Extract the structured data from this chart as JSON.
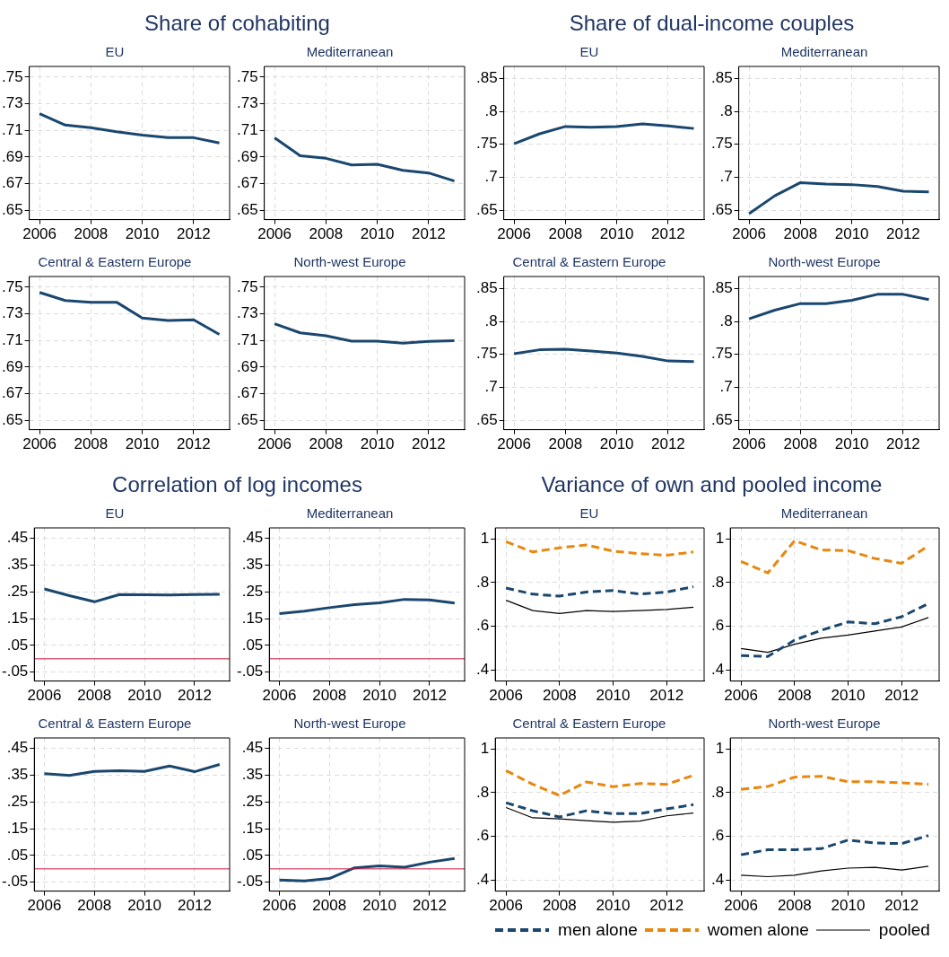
{
  "chart_data": [
    {
      "type": "line",
      "title": "Share of cohabiting",
      "subtitle": "EU",
      "x": [
        2006,
        2007,
        2008,
        2009,
        2010,
        2011,
        2012,
        2013
      ],
      "values": [
        0.7225,
        0.714,
        0.712,
        0.709,
        0.7065,
        0.7045,
        0.7045,
        0.7005
      ],
      "color": "#1a476f",
      "xlim": [
        2005.6,
        2013.4
      ],
      "xticks": [
        2006,
        2008,
        2010,
        2012
      ],
      "ylim": [
        0.643,
        0.758
      ],
      "yticks": [
        {
          "value": 0.65,
          "label": ".65"
        },
        {
          "value": 0.67,
          "label": ".67"
        },
        {
          "value": 0.69,
          "label": ".69"
        },
        {
          "value": 0.71,
          "label": ".71"
        },
        {
          "value": 0.73,
          "label": ".73"
        },
        {
          "value": 0.75,
          "label": ".75"
        }
      ],
      "grid": true
    },
    {
      "type": "line",
      "subtitle": "Mediterranean",
      "x": [
        2006,
        2007,
        2008,
        2009,
        2010,
        2011,
        2012,
        2013
      ],
      "values": [
        0.7044,
        0.691,
        0.689,
        0.684,
        0.6845,
        0.68,
        0.678,
        0.672
      ],
      "color": "#1a476f",
      "xlim": [
        2005.6,
        2013.4
      ],
      "xticks": [
        2006,
        2008,
        2010,
        2012
      ],
      "ylim": [
        0.643,
        0.758
      ],
      "yticks": [
        {
          "value": 0.65,
          "label": ".65"
        },
        {
          "value": 0.67,
          "label": ".67"
        },
        {
          "value": 0.69,
          "label": ".69"
        },
        {
          "value": 0.71,
          "label": ".71"
        },
        {
          "value": 0.73,
          "label": ".73"
        },
        {
          "value": 0.75,
          "label": ".75"
        }
      ],
      "grid": true
    },
    {
      "type": "line",
      "subtitle": "Central & Eastern Europe",
      "x": [
        2006,
        2007,
        2008,
        2009,
        2010,
        2011,
        2012,
        2013
      ],
      "values": [
        0.746,
        0.74,
        0.7387,
        0.7387,
        0.7268,
        0.725,
        0.7255,
        0.7145
      ],
      "color": "#1a476f",
      "xlim": [
        2005.6,
        2013.4
      ],
      "xticks": [
        2006,
        2008,
        2010,
        2012
      ],
      "ylim": [
        0.643,
        0.758
      ],
      "yticks": [
        {
          "value": 0.65,
          "label": ".65"
        },
        {
          "value": 0.67,
          "label": ".67"
        },
        {
          "value": 0.69,
          "label": ".69"
        },
        {
          "value": 0.71,
          "label": ".71"
        },
        {
          "value": 0.73,
          "label": ".73"
        },
        {
          "value": 0.75,
          "label": ".75"
        }
      ],
      "grid": true
    },
    {
      "type": "line",
      "subtitle": "North-west Europe",
      "x": [
        2006,
        2007,
        2008,
        2009,
        2010,
        2011,
        2012,
        2013
      ],
      "values": [
        0.7225,
        0.7157,
        0.7135,
        0.7095,
        0.7095,
        0.708,
        0.7093,
        0.7098
      ],
      "color": "#1a476f",
      "xlim": [
        2005.6,
        2013.4
      ],
      "xticks": [
        2006,
        2008,
        2010,
        2012
      ],
      "ylim": [
        0.643,
        0.758
      ],
      "yticks": [
        {
          "value": 0.65,
          "label": ".65"
        },
        {
          "value": 0.67,
          "label": ".67"
        },
        {
          "value": 0.69,
          "label": ".69"
        },
        {
          "value": 0.71,
          "label": ".71"
        },
        {
          "value": 0.73,
          "label": ".73"
        },
        {
          "value": 0.75,
          "label": ".75"
        }
      ],
      "grid": true
    },
    {
      "type": "line",
      "title": "Share of dual-income couples",
      "subtitle": "EU",
      "x": [
        2006,
        2007,
        2008,
        2009,
        2010,
        2011,
        2012,
        2013
      ],
      "values": [
        0.751,
        0.766,
        0.777,
        0.776,
        0.777,
        0.781,
        0.778,
        0.774
      ],
      "color": "#1a476f",
      "xlim": [
        2005.6,
        2013.4
      ],
      "xticks": [
        2006,
        2008,
        2010,
        2012
      ],
      "ylim": [
        0.636,
        0.868
      ],
      "yticks": [
        {
          "value": 0.65,
          "label": ".65"
        },
        {
          "value": 0.7,
          "label": ".7"
        },
        {
          "value": 0.75,
          "label": ".75"
        },
        {
          "value": 0.8,
          "label": ".8"
        },
        {
          "value": 0.85,
          "label": ".85"
        }
      ],
      "grid": true
    },
    {
      "type": "line",
      "subtitle": "Mediterranean",
      "x": [
        2006,
        2007,
        2008,
        2009,
        2010,
        2011,
        2012,
        2013
      ],
      "values": [
        0.645,
        0.672,
        0.692,
        0.69,
        0.689,
        0.686,
        0.679,
        0.678
      ],
      "color": "#1a476f",
      "xlim": [
        2005.6,
        2013.4
      ],
      "xticks": [
        2006,
        2008,
        2010,
        2012
      ],
      "ylim": [
        0.636,
        0.868
      ],
      "yticks": [
        {
          "value": 0.65,
          "label": ".65"
        },
        {
          "value": 0.7,
          "label": ".7"
        },
        {
          "value": 0.75,
          "label": ".75"
        },
        {
          "value": 0.8,
          "label": ".8"
        },
        {
          "value": 0.85,
          "label": ".85"
        }
      ],
      "grid": true
    },
    {
      "type": "line",
      "subtitle": "Central & Eastern Europe",
      "x": [
        2006,
        2007,
        2008,
        2009,
        2010,
        2011,
        2012,
        2013
      ],
      "values": [
        0.751,
        0.757,
        0.758,
        0.755,
        0.752,
        0.747,
        0.74,
        0.739
      ],
      "color": "#1a476f",
      "xlim": [
        2005.6,
        2013.4
      ],
      "xticks": [
        2006,
        2008,
        2010,
        2012
      ],
      "ylim": [
        0.636,
        0.868
      ],
      "yticks": [
        {
          "value": 0.65,
          "label": ".65"
        },
        {
          "value": 0.7,
          "label": ".7"
        },
        {
          "value": 0.75,
          "label": ".75"
        },
        {
          "value": 0.8,
          "label": ".8"
        },
        {
          "value": 0.85,
          "label": ".85"
        }
      ],
      "grid": true
    },
    {
      "type": "line",
      "subtitle": "North-west Europe",
      "x": [
        2006,
        2007,
        2008,
        2009,
        2010,
        2011,
        2012,
        2013
      ],
      "values": [
        0.804,
        0.817,
        0.827,
        0.827,
        0.832,
        0.841,
        0.841,
        0.833
      ],
      "color": "#1a476f",
      "xlim": [
        2005.6,
        2013.4
      ],
      "xticks": [
        2006,
        2008,
        2010,
        2012
      ],
      "ylim": [
        0.636,
        0.868
      ],
      "yticks": [
        {
          "value": 0.65,
          "label": ".65"
        },
        {
          "value": 0.7,
          "label": ".7"
        },
        {
          "value": 0.75,
          "label": ".75"
        },
        {
          "value": 0.8,
          "label": ".8"
        },
        {
          "value": 0.85,
          "label": ".85"
        }
      ],
      "grid": true
    },
    {
      "type": "line",
      "title": "Correlation of log incomes",
      "subtitle": "EU",
      "x": [
        2006,
        2007,
        2008,
        2009,
        2010,
        2011,
        2012,
        2013
      ],
      "values": [
        0.261,
        0.236,
        0.213,
        0.24,
        0.239,
        0.238,
        0.24,
        0.241
      ],
      "color": "#1a476f",
      "xlim": [
        2005.6,
        2013.4
      ],
      "xticks": [
        2006,
        2008,
        2010,
        2012
      ],
      "ylim": [
        -0.083,
        0.489
      ],
      "yticks": [
        {
          "value": -0.05,
          "label": "-.05"
        },
        {
          "value": 0.05,
          "label": ".05"
        },
        {
          "value": 0.15,
          "label": ".15"
        },
        {
          "value": 0.25,
          "label": ".25"
        },
        {
          "value": 0.35,
          "label": ".35"
        },
        {
          "value": 0.45,
          "label": ".45"
        }
      ],
      "grid": true,
      "ref_lines": [
        {
          "axis": "y",
          "value": 0,
          "color": "#c8143c"
        }
      ]
    },
    {
      "type": "line",
      "subtitle": "Mediterranean",
      "x": [
        2006,
        2007,
        2008,
        2009,
        2010,
        2011,
        2012,
        2013
      ],
      "values": [
        0.169,
        0.178,
        0.191,
        0.202,
        0.209,
        0.222,
        0.22,
        0.208
      ],
      "color": "#1a476f",
      "xlim": [
        2005.6,
        2013.4
      ],
      "xticks": [
        2006,
        2008,
        2010,
        2012
      ],
      "ylim": [
        -0.083,
        0.489
      ],
      "yticks": [
        {
          "value": -0.05,
          "label": "-.05"
        },
        {
          "value": 0.05,
          "label": ".05"
        },
        {
          "value": 0.15,
          "label": ".15"
        },
        {
          "value": 0.25,
          "label": ".25"
        },
        {
          "value": 0.35,
          "label": ".35"
        },
        {
          "value": 0.45,
          "label": ".45"
        }
      ],
      "grid": true,
      "ref_lines": [
        {
          "axis": "y",
          "value": 0,
          "color": "#c8143c"
        }
      ]
    },
    {
      "type": "line",
      "subtitle": "Central & Eastern Europe",
      "x": [
        2006,
        2007,
        2008,
        2009,
        2010,
        2011,
        2012,
        2013
      ],
      "values": [
        0.356,
        0.349,
        0.364,
        0.367,
        0.364,
        0.384,
        0.363,
        0.39
      ],
      "color": "#1a476f",
      "xlim": [
        2005.6,
        2013.4
      ],
      "xticks": [
        2006,
        2008,
        2010,
        2012
      ],
      "ylim": [
        -0.083,
        0.489
      ],
      "yticks": [
        {
          "value": -0.05,
          "label": "-.05"
        },
        {
          "value": 0.05,
          "label": ".05"
        },
        {
          "value": 0.15,
          "label": ".15"
        },
        {
          "value": 0.25,
          "label": ".25"
        },
        {
          "value": 0.35,
          "label": ".35"
        },
        {
          "value": 0.45,
          "label": ".45"
        }
      ],
      "grid": true,
      "ref_lines": [
        {
          "axis": "y",
          "value": 0,
          "color": "#c8143c"
        }
      ]
    },
    {
      "type": "line",
      "subtitle": "North-west Europe",
      "x": [
        2006,
        2007,
        2008,
        2009,
        2010,
        2011,
        2012,
        2013
      ],
      "values": [
        -0.042,
        -0.045,
        -0.036,
        0.004,
        0.011,
        0.006,
        0.025,
        0.039
      ],
      "color": "#1a476f",
      "xlim": [
        2005.6,
        2013.4
      ],
      "xticks": [
        2006,
        2008,
        2010,
        2012
      ],
      "ylim": [
        -0.083,
        0.489
      ],
      "yticks": [
        {
          "value": -0.05,
          "label": "-.05"
        },
        {
          "value": 0.05,
          "label": ".05"
        },
        {
          "value": 0.15,
          "label": ".15"
        },
        {
          "value": 0.25,
          "label": ".25"
        },
        {
          "value": 0.35,
          "label": ".35"
        },
        {
          "value": 0.45,
          "label": ".45"
        }
      ],
      "grid": true,
      "ref_lines": [
        {
          "axis": "y",
          "value": 0,
          "color": "#c8143c"
        }
      ]
    },
    {
      "type": "line",
      "title": "Variance of own and pooled income",
      "subtitle": "EU",
      "x": [
        2006,
        2007,
        2008,
        2009,
        2010,
        2011,
        2012,
        2013
      ],
      "xlim": [
        2005.6,
        2013.4
      ],
      "xticks": [
        2006,
        2008,
        2010,
        2012
      ],
      "ylim": [
        0.35,
        1.05
      ],
      "yticks": [
        {
          "value": 0.4,
          "label": ".4"
        },
        {
          "value": 0.6,
          "label": ".6"
        },
        {
          "value": 0.8,
          "label": ".8"
        },
        {
          "value": 1,
          "label": "1"
        }
      ],
      "grid": true,
      "legend": "bottom",
      "series": [
        {
          "name": "men alone",
          "color": "#1a476f",
          "line_style": "dashed",
          "values": [
            0.775,
            0.747,
            0.738,
            0.757,
            0.764,
            0.747,
            0.757,
            0.781
          ]
        },
        {
          "name": "women alone",
          "color": "#e8870e",
          "line_style": "dashed",
          "values": [
            0.987,
            0.94,
            0.959,
            0.972,
            0.944,
            0.932,
            0.925,
            0.94
          ]
        },
        {
          "name": "pooled",
          "color": "#000000",
          "line_style": "solid",
          "values": [
            0.719,
            0.672,
            0.659,
            0.672,
            0.668,
            0.672,
            0.677,
            0.687
          ]
        }
      ]
    },
    {
      "type": "line",
      "subtitle": "Mediterranean",
      "x": [
        2006,
        2007,
        2008,
        2009,
        2010,
        2011,
        2012,
        2013
      ],
      "xlim": [
        2005.6,
        2013.4
      ],
      "xticks": [
        2006,
        2008,
        2010,
        2012
      ],
      "ylim": [
        0.35,
        1.05
      ],
      "yticks": [
        {
          "value": 0.4,
          "label": ".4"
        },
        {
          "value": 0.6,
          "label": ".6"
        },
        {
          "value": 0.8,
          "label": ".8"
        },
        {
          "value": 1,
          "label": "1"
        }
      ],
      "grid": true,
      "series": [
        {
          "color": "#1a476f",
          "line_style": "dashed",
          "values": [
            0.466,
            0.462,
            0.537,
            0.582,
            0.62,
            0.612,
            0.644,
            0.704
          ]
        },
        {
          "color": "#e8870e",
          "line_style": "dashed",
          "values": [
            0.897,
            0.844,
            0.991,
            0.949,
            0.946,
            0.91,
            0.888,
            0.968
          ]
        },
        {
          "color": "#000000",
          "line_style": "solid",
          "values": [
            0.499,
            0.481,
            0.518,
            0.546,
            0.56,
            0.579,
            0.597,
            0.64
          ]
        }
      ]
    },
    {
      "type": "line",
      "subtitle": "Central & Eastern Europe",
      "x": [
        2006,
        2007,
        2008,
        2009,
        2010,
        2011,
        2012,
        2013
      ],
      "xlim": [
        2005.6,
        2013.4
      ],
      "xticks": [
        2006,
        2008,
        2010,
        2012
      ],
      "ylim": [
        0.35,
        1.05
      ],
      "yticks": [
        {
          "value": 0.4,
          "label": ".4"
        },
        {
          "value": 0.6,
          "label": ".6"
        },
        {
          "value": 0.8,
          "label": ".8"
        },
        {
          "value": 1,
          "label": "1"
        }
      ],
      "grid": true,
      "series": [
        {
          "color": "#1a476f",
          "line_style": "dashed",
          "values": [
            0.754,
            0.717,
            0.689,
            0.717,
            0.704,
            0.704,
            0.726,
            0.745
          ]
        },
        {
          "color": "#e8870e",
          "line_style": "dashed",
          "values": [
            0.901,
            0.838,
            0.787,
            0.849,
            0.827,
            0.842,
            0.838,
            0.879
          ]
        },
        {
          "color": "#000000",
          "line_style": "solid",
          "values": [
            0.732,
            0.685,
            0.68,
            0.672,
            0.665,
            0.67,
            0.694,
            0.707
          ]
        }
      ]
    },
    {
      "type": "line",
      "subtitle": "North-west Europe",
      "x": [
        2006,
        2007,
        2008,
        2009,
        2010,
        2011,
        2012,
        2013
      ],
      "xlim": [
        2005.6,
        2013.4
      ],
      "xticks": [
        2006,
        2008,
        2010,
        2012
      ],
      "ylim": [
        0.35,
        1.05
      ],
      "yticks": [
        {
          "value": 0.4,
          "label": ".4"
        },
        {
          "value": 0.6,
          "label": ".6"
        },
        {
          "value": 0.8,
          "label": ".8"
        },
        {
          "value": 1,
          "label": "1"
        }
      ],
      "grid": true,
      "series": [
        {
          "color": "#1a476f",
          "line_style": "dashed",
          "values": [
            0.516,
            0.539,
            0.539,
            0.544,
            0.583,
            0.57,
            0.567,
            0.604
          ]
        },
        {
          "color": "#e8870e",
          "line_style": "dashed",
          "values": [
            0.815,
            0.828,
            0.871,
            0.875,
            0.85,
            0.85,
            0.845,
            0.838
          ]
        },
        {
          "color": "#000000",
          "line_style": "solid",
          "values": [
            0.423,
            0.416,
            0.423,
            0.442,
            0.455,
            0.459,
            0.446,
            0.464
          ]
        }
      ]
    }
  ]
}
